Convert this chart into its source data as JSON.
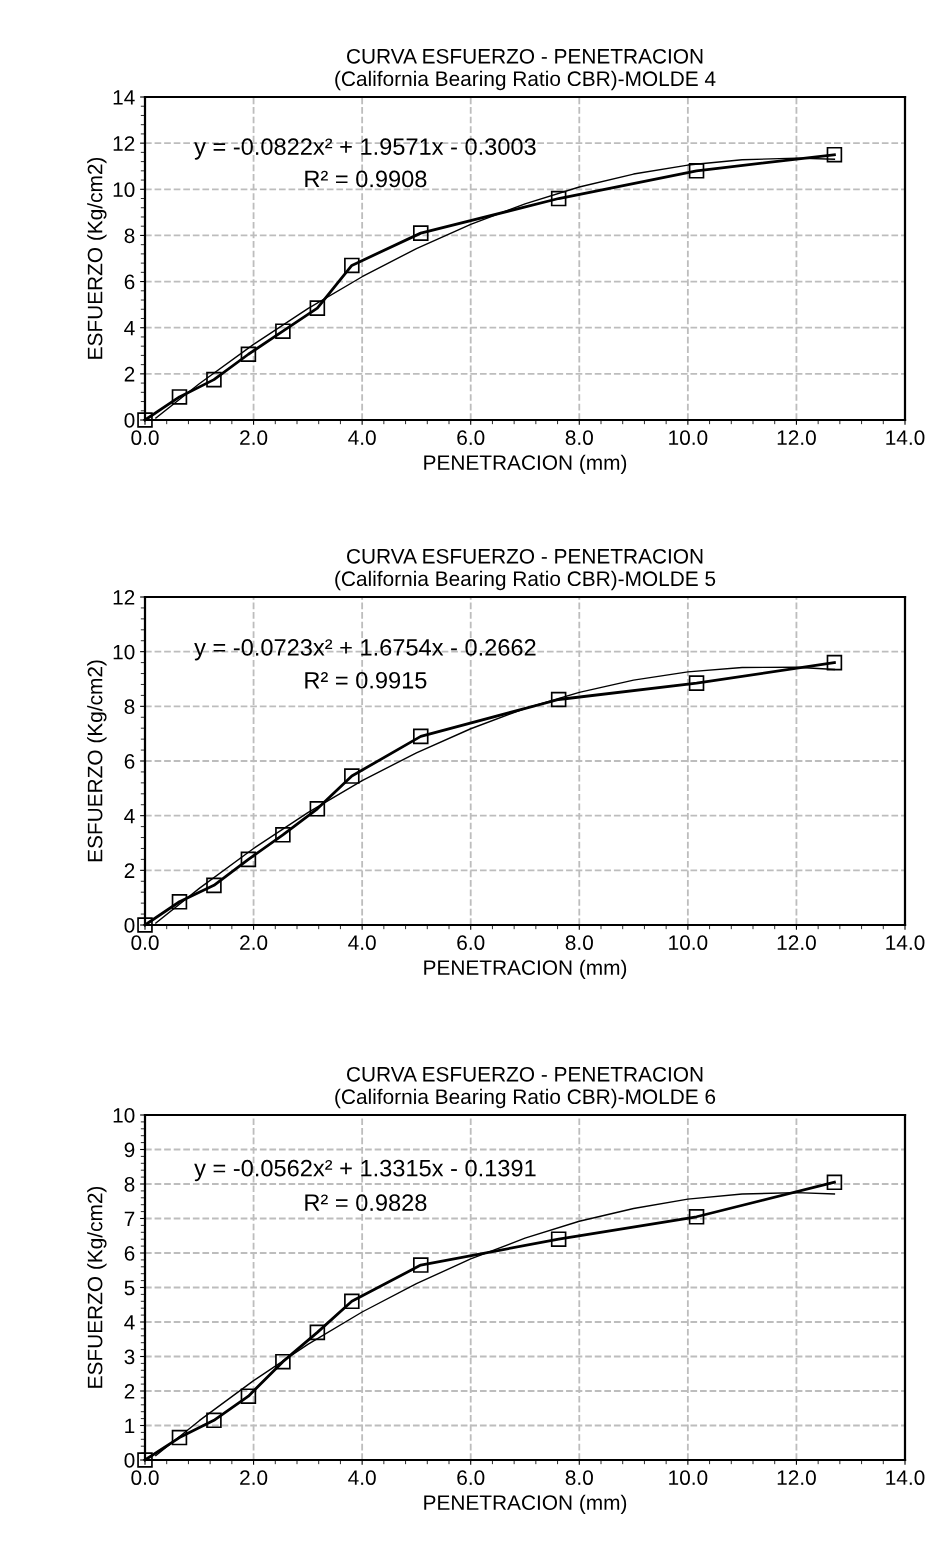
{
  "chart_data": [
    {
      "type": "line",
      "title": "CURVA ESFUERZO - PENETRACION\n(California Bearing Ratio CBR)-MOLDE 4",
      "xlabel": "PENETRACION (mm)",
      "ylabel": "ESFUERZO (Kg/cm2)",
      "xlim": [
        0,
        14
      ],
      "xticks": [
        {
          "value": 0,
          "label": "0.0"
        },
        {
          "value": 2,
          "label": "2.0"
        },
        {
          "value": 4,
          "label": "4.0"
        },
        {
          "value": 6,
          "label": "6.0"
        },
        {
          "value": 8,
          "label": "8.0"
        },
        {
          "value": 10,
          "label": "10.0"
        },
        {
          "value": 12,
          "label": "12.0"
        },
        {
          "value": 14,
          "label": "14.0"
        }
      ],
      "ylim": [
        0,
        14
      ],
      "yticks": [
        0,
        2,
        4,
        6,
        8,
        10,
        12,
        14
      ],
      "grid": true,
      "legend": false,
      "annotations": [
        "y = -0.0822x² + 1.9571x - 0.3003",
        "R² = 0.9908"
      ],
      "series": [
        {
          "color": "#000000",
          "marker": "square",
          "line_style": "solid",
          "x": [
            0,
            0.635,
            1.27,
            1.905,
            2.54,
            3.175,
            3.81,
            5.08,
            7.62,
            10.16,
            12.7
          ],
          "values": [
            0,
            1.0,
            1.75,
            2.85,
            3.85,
            4.85,
            6.7,
            8.1,
            9.6,
            10.8,
            11.5
          ]
        },
        {
          "color": "#000000",
          "marker": "none",
          "line_style": "solid",
          "x": [
            0.2,
            1,
            2,
            3,
            4,
            5,
            6,
            7,
            8,
            9,
            10,
            11,
            12,
            12.7
          ],
          "values": [
            0.09,
            1.57,
            3.28,
            4.83,
            6.21,
            7.43,
            8.48,
            9.37,
            10.1,
            10.66,
            11.05,
            11.28,
            11.35,
            11.3
          ]
        }
      ]
    },
    {
      "type": "line",
      "title": "CURVA ESFUERZO - PENETRACION\n(California Bearing Ratio CBR)-MOLDE 5",
      "xlabel": "PENETRACION (mm)",
      "ylabel": "ESFUERZO (Kg/cm2)",
      "xlim": [
        0,
        14
      ],
      "xticks": [
        {
          "value": 0,
          "label": "0.0"
        },
        {
          "value": 2,
          "label": "2.0"
        },
        {
          "value": 4,
          "label": "4.0"
        },
        {
          "value": 6,
          "label": "6.0"
        },
        {
          "value": 8,
          "label": "8.0"
        },
        {
          "value": 10,
          "label": "10.0"
        },
        {
          "value": 12,
          "label": "12.0"
        },
        {
          "value": 14,
          "label": "14.0"
        }
      ],
      "ylim": [
        0,
        12
      ],
      "yticks": [
        0,
        2,
        4,
        6,
        8,
        10,
        12
      ],
      "grid": true,
      "legend": false,
      "annotations": [
        "y = -0.0723x² + 1.6754x - 0.2662",
        "R² = 0.9915"
      ],
      "series": [
        {
          "color": "#000000",
          "marker": "square",
          "line_style": "solid",
          "x": [
            0,
            0.635,
            1.27,
            1.905,
            2.54,
            3.175,
            3.81,
            5.08,
            7.62,
            10.16,
            12.7
          ],
          "values": [
            0,
            0.85,
            1.45,
            2.4,
            3.3,
            4.25,
            5.45,
            6.9,
            8.25,
            8.85,
            9.6
          ]
        },
        {
          "color": "#000000",
          "marker": "none",
          "line_style": "solid",
          "x": [
            0.2,
            1,
            2,
            3,
            4,
            5,
            6,
            7,
            8,
            9,
            10,
            11,
            12,
            12.7
          ],
          "values": [
            0.07,
            1.34,
            2.8,
            4.11,
            5.28,
            6.3,
            7.18,
            7.92,
            8.51,
            8.96,
            9.26,
            9.42,
            9.43,
            9.35
          ]
        }
      ]
    },
    {
      "type": "line",
      "title": "CURVA ESFUERZO - PENETRACION\n(California Bearing Ratio CBR)-MOLDE 6",
      "xlabel": "PENETRACION (mm)",
      "ylabel": "ESFUERZO (Kg/cm2)",
      "xlim": [
        0,
        14
      ],
      "xticks": [
        {
          "value": 0,
          "label": "0.0"
        },
        {
          "value": 2,
          "label": "2.0"
        },
        {
          "value": 4,
          "label": "4.0"
        },
        {
          "value": 6,
          "label": "6.0"
        },
        {
          "value": 8,
          "label": "8.0"
        },
        {
          "value": 10,
          "label": "10.0"
        },
        {
          "value": 12,
          "label": "12.0"
        },
        {
          "value": 14,
          "label": "14.0"
        }
      ],
      "ylim": [
        0,
        10
      ],
      "yticks": [
        0,
        1,
        2,
        3,
        4,
        5,
        6,
        7,
        8,
        9,
        10
      ],
      "grid": true,
      "legend": false,
      "annotations": [
        "y = -0.0562x² + 1.3315x - 0.1391",
        "R² = 0.9828"
      ],
      "series": [
        {
          "color": "#000000",
          "marker": "square",
          "line_style": "solid",
          "x": [
            0,
            0.635,
            1.27,
            1.905,
            2.54,
            3.175,
            3.81,
            5.08,
            7.62,
            10.16,
            12.7
          ],
          "values": [
            0,
            0.65,
            1.15,
            1.85,
            2.85,
            3.7,
            4.6,
            5.65,
            6.4,
            7.05,
            8.05
          ]
        },
        {
          "color": "#000000",
          "marker": "none",
          "line_style": "solid",
          "x": [
            0.2,
            1,
            2,
            3,
            4,
            5,
            6,
            7,
            8,
            9,
            10,
            11,
            12,
            12.7
          ],
          "values": [
            0.13,
            1.14,
            2.3,
            3.35,
            4.29,
            5.11,
            5.83,
            6.43,
            6.92,
            7.29,
            7.56,
            7.71,
            7.75,
            7.71
          ]
        }
      ]
    }
  ]
}
